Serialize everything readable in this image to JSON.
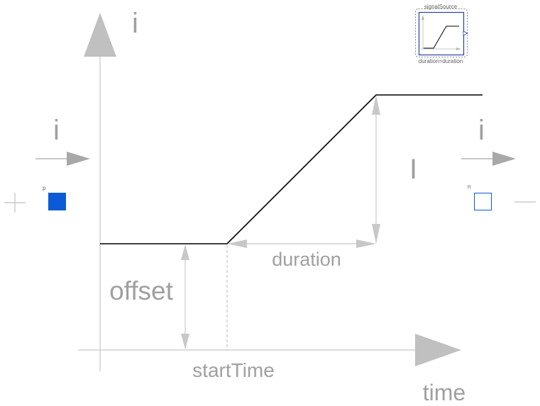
{
  "labels": {
    "y_axis": "i",
    "input_current": "i",
    "output_current": "i",
    "height": "I",
    "duration": "duration",
    "offset": "offset",
    "start_time": "startTime",
    "time_axis": "time"
  },
  "pins": {
    "positive": "p",
    "negative": "n"
  },
  "icon": {
    "name": "signalSource",
    "parameter": "duration=duration"
  },
  "colors": {
    "axis": "#c0c0c0",
    "signal": "#000000",
    "label": "#a0a0a0",
    "pin_positive": "#0b5bd7",
    "pin_negative": "#0b5bd7",
    "icon_border": "#2b3fa8"
  }
}
